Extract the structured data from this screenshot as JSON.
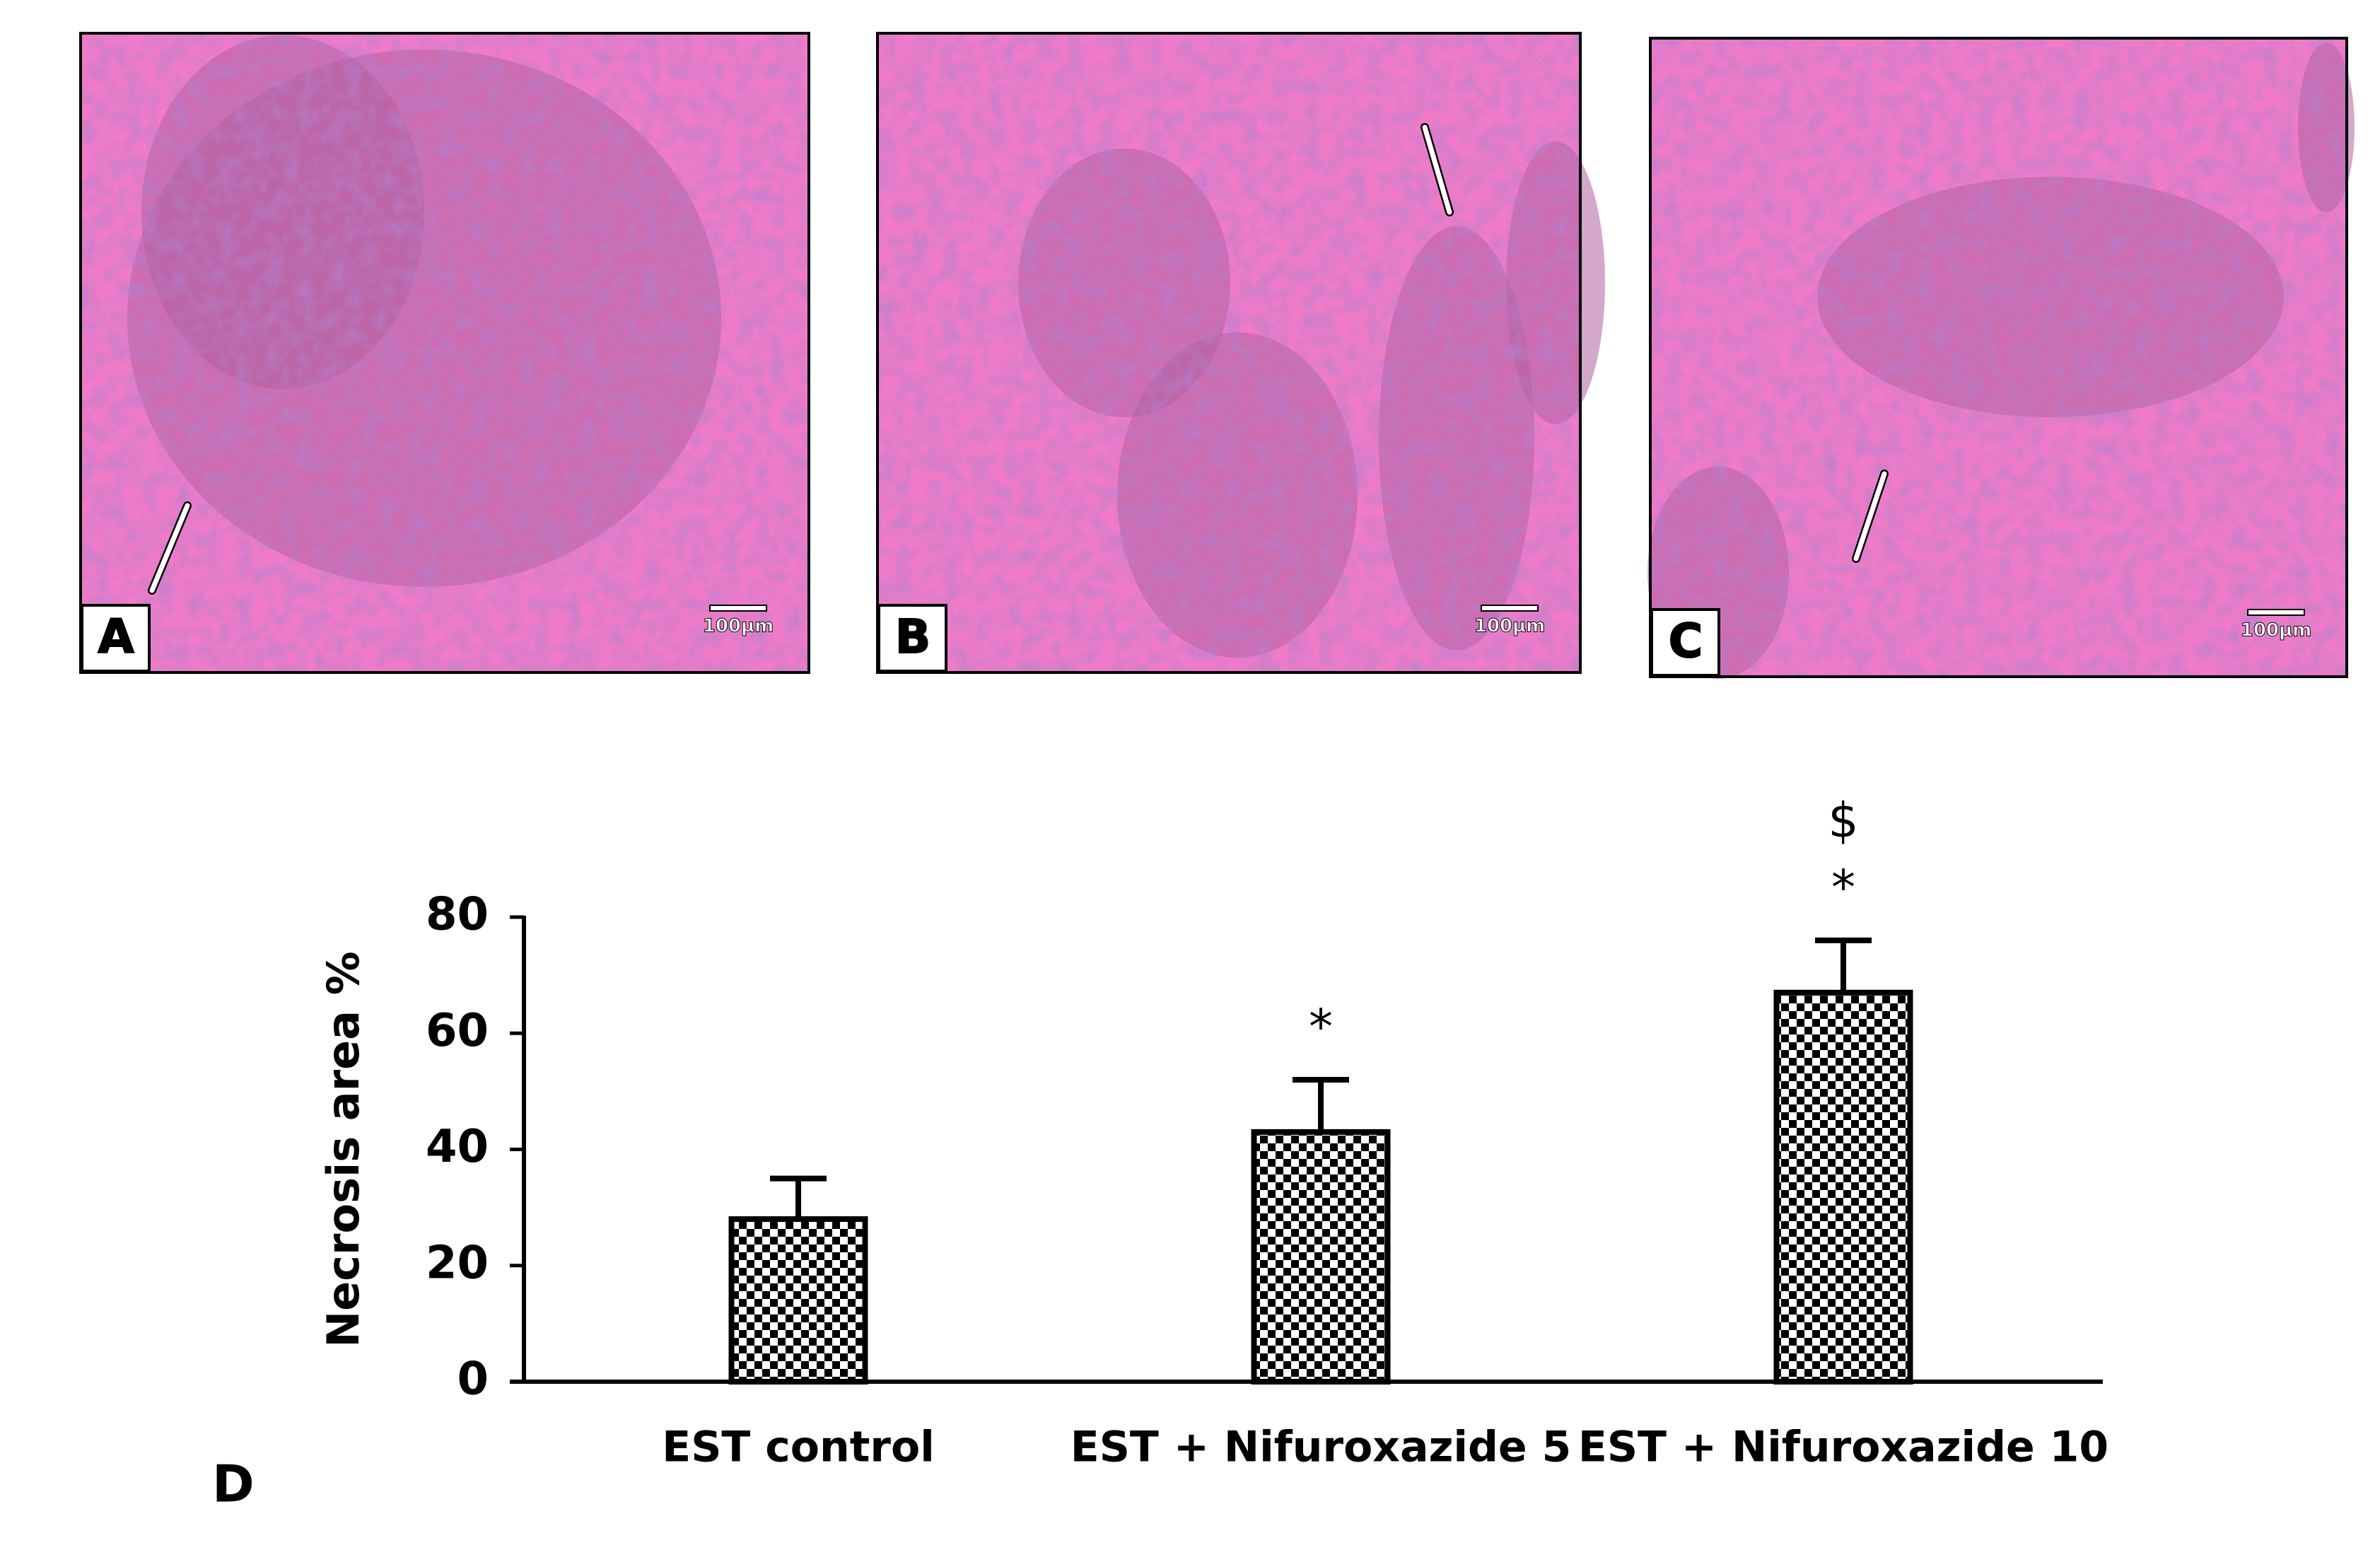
{
  "panels": [
    {
      "label": "A",
      "scale_bar": "100µm"
    },
    {
      "label": "B",
      "scale_bar": "100µm"
    },
    {
      "label": "C",
      "scale_bar": "100µm"
    }
  ],
  "chart_data": {
    "type": "bar",
    "panel_label": "D",
    "y_label": "Necrosis area %",
    "categories": [
      "EST control",
      "EST + Nifuroxazide 5",
      "EST + Nifuroxazide 10"
    ],
    "values": [
      28,
      43,
      67
    ],
    "errors": [
      7,
      9,
      9
    ],
    "annotations": [
      [],
      [
        "*"
      ],
      [
        "*",
        "$"
      ]
    ],
    "color": "#000000",
    "ylim": [
      0,
      80
    ],
    "yticks": [
      0,
      20,
      40,
      60,
      80
    ],
    "grid": false
  }
}
